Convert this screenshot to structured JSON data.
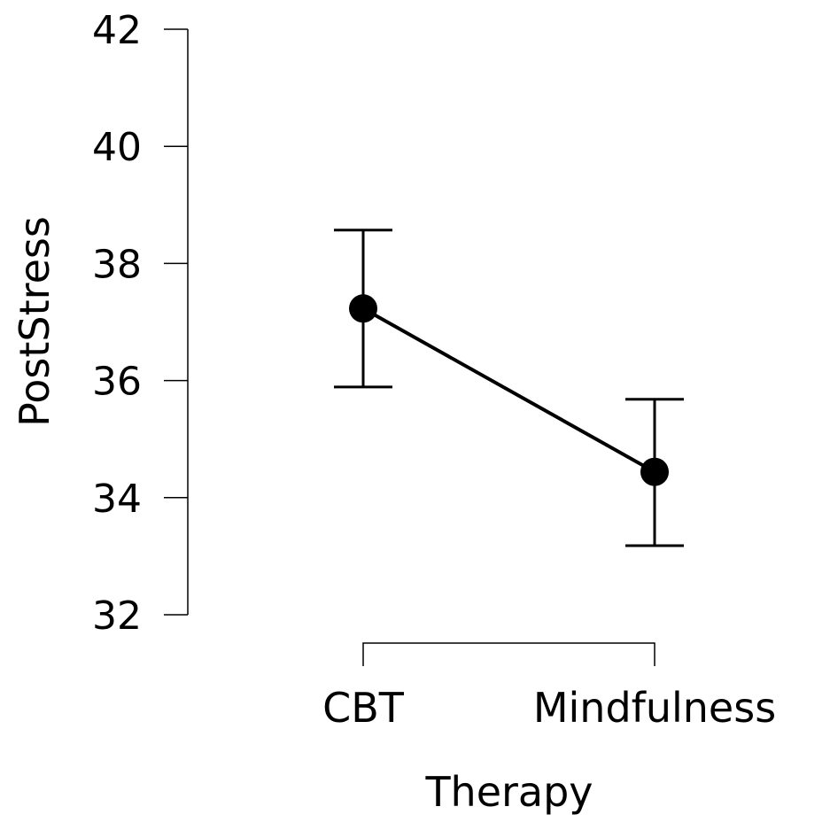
{
  "chart_data": {
    "type": "line",
    "title": "",
    "xlabel": "Therapy",
    "ylabel": "PostStress",
    "categories": [
      "CBT",
      "Mindfulness"
    ],
    "series": [
      {
        "name": "PostStress",
        "values": [
          37.23,
          34.44
        ],
        "error_lower": [
          35.89,
          33.18
        ],
        "error_upper": [
          38.57,
          35.68
        ]
      }
    ],
    "ylim": [
      32,
      42
    ],
    "yticks": [
      "32",
      "34",
      "36",
      "38",
      "40",
      "42"
    ],
    "grid": false,
    "colors": {
      "line": "#000000",
      "point": "#000000"
    }
  }
}
